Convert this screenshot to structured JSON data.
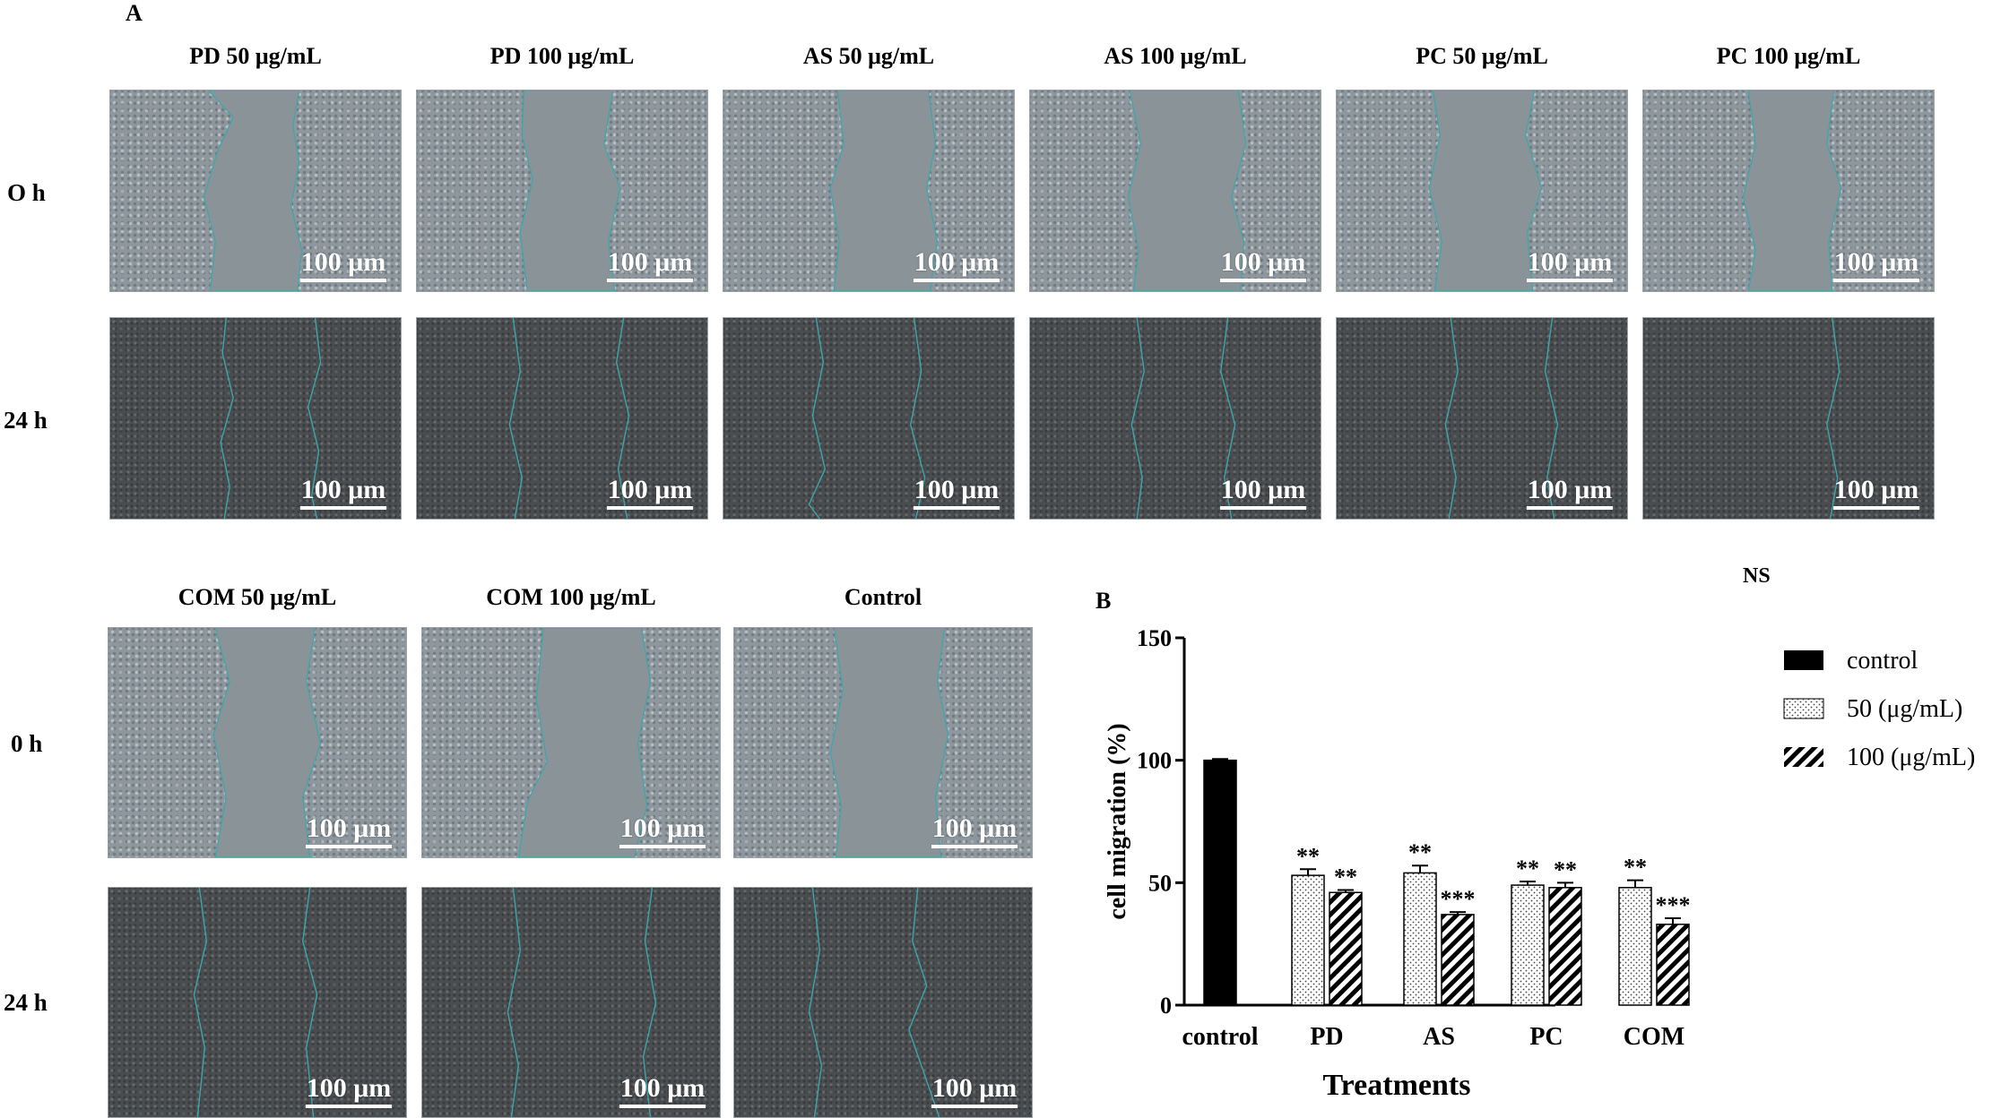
{
  "panel_a_letter": "A",
  "panel_b_letter": "B",
  "ns_text": "NS",
  "scale_label": "100 μm",
  "top_columns": [
    "PD 50 μg/mL",
    "PD 100 μg/mL",
    "AS 50 μg/mL",
    "AS 100 μg/mL",
    "PC 50 μg/mL",
    "PC 100 μg/mL"
  ],
  "bottom_columns": [
    "COM 50 μg/mL",
    "COM 100 μg/mL",
    "Control"
  ],
  "top_rows": [
    "O h",
    "24 h"
  ],
  "bottom_rows": [
    "0 h",
    "24 h"
  ],
  "colors": {
    "wound_edge": "#3aa7ad",
    "bar_control": "#000000",
    "ink": "#000000"
  },
  "chart_data": {
    "type": "bar",
    "title": "",
    "xlabel": "Treatments",
    "ylabel": "cell migration (%)",
    "ylim": [
      0,
      150
    ],
    "yticks": [
      0,
      50,
      100,
      150
    ],
    "categories": [
      "control",
      "PD",
      "AS",
      "PC",
      "COM"
    ],
    "series": [
      {
        "name": "control",
        "pattern": "solid",
        "values": [
          100,
          null,
          null,
          null,
          null
        ],
        "errors": [
          0.5,
          null,
          null,
          null,
          null
        ],
        "annotations": [
          "",
          "",
          "",
          "",
          ""
        ]
      },
      {
        "name": "50 (μg/mL)",
        "pattern": "dots",
        "values": [
          null,
          53,
          54,
          49,
          48
        ],
        "errors": [
          null,
          2.5,
          3,
          1.5,
          3
        ],
        "annotations": [
          "",
          "**",
          "**",
          "**",
          "**"
        ]
      },
      {
        "name": "100 (μg/mL)",
        "pattern": "stripes",
        "values": [
          null,
          46,
          37,
          48,
          33
        ],
        "errors": [
          null,
          1,
          1,
          2,
          2.5
        ],
        "annotations": [
          "",
          "**",
          "***",
          "**",
          "***"
        ]
      }
    ],
    "legend": "right",
    "grid": false
  }
}
